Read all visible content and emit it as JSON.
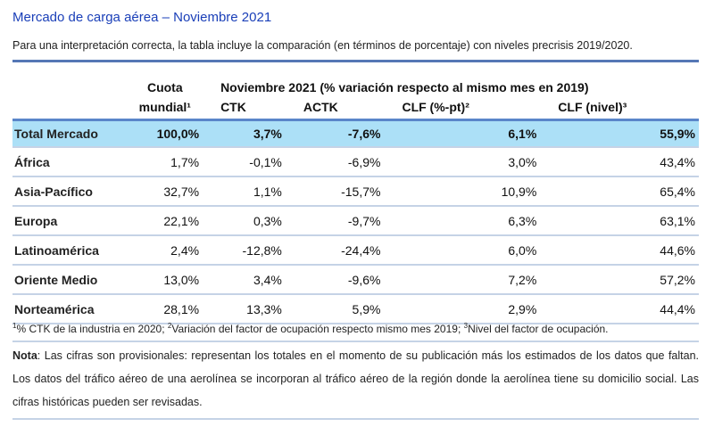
{
  "title": "Mercado de carga aérea – Noviembre 2021",
  "subtitle": "Para una interpretación correcta, la tabla incluye la comparación (en términos de porcentaje) con niveles precrisis 2019/2020.",
  "header": {
    "cuota_line1": "Cuota",
    "cuota_line2": "mundial¹",
    "group": "Noviembre 2021 (% variación respecto al mismo mes en 2019)",
    "columns": [
      "CTK",
      "ACTK",
      "CLF (%-pt)²",
      "CLF (nivel)³"
    ]
  },
  "rows": [
    {
      "region": "Total Mercado",
      "cuota": "100,0%",
      "ctk": "3,7%",
      "actk": "-7,6%",
      "clf_pt": "6,1%",
      "clf_nivel": "55,9%"
    },
    {
      "region": "África",
      "cuota": "1,7%",
      "ctk": "-0,1%",
      "actk": "-6,9%",
      "clf_pt": "3,0%",
      "clf_nivel": "43,4%"
    },
    {
      "region": "Asia-Pacífico",
      "cuota": "32,7%",
      "ctk": "1,1%",
      "actk": "-15,7%",
      "clf_pt": "10,9%",
      "clf_nivel": "65,4%"
    },
    {
      "region": "Europa",
      "cuota": "22,1%",
      "ctk": "0,3%",
      "actk": "-9,7%",
      "clf_pt": "6,3%",
      "clf_nivel": "63,1%"
    },
    {
      "region": "Latinoamérica",
      "cuota": "2,4%",
      "ctk": "-12,8%",
      "actk": "-24,4%",
      "clf_pt": "6,0%",
      "clf_nivel": "44,6%"
    },
    {
      "region": "Oriente Medio",
      "cuota": "13,0%",
      "ctk": "3,4%",
      "actk": "-9,6%",
      "clf_pt": "7,2%",
      "clf_nivel": "57,2%"
    },
    {
      "region": "Norteamérica",
      "cuota": "28,1%",
      "ctk": "13,3%",
      "actk": "5,9%",
      "clf_pt": "2,9%",
      "clf_nivel": "44,4%"
    }
  ],
  "footnotes": {
    "n1": "1",
    "t1": "% CTK de la industria en 2020; ",
    "n2": "2",
    "t2": "Variación del factor de ocupación respecto mismo mes 2019; ",
    "n3": "3",
    "t3": "Nivel del factor de ocupación."
  },
  "nota": {
    "label": "Nota",
    "text": ": Las cifras son provisionales: representan los totales en el momento de su publicación más los estimados de los datos que faltan. Los datos del tráfico aéreo de una aerolínea se incorporan al tráfico aéreo de la región donde la aerolínea tiene su domicilio social. Las cifras históricas pueden ser revisadas."
  }
}
